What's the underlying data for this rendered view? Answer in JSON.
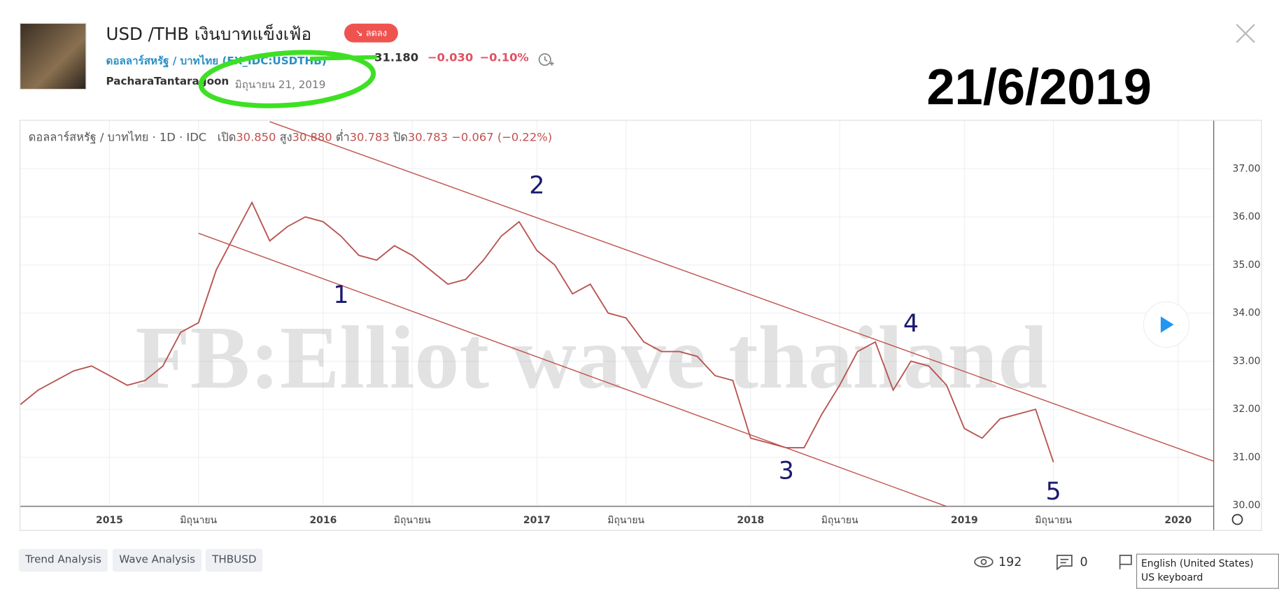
{
  "header": {
    "title": "USD /THB เงินบาทแข็งเฟ้อ",
    "badge": "↘ ลดลง",
    "symbol": "ดอลลาร์สหรัฐ / บาทไทย (FX_IDC:USDTHB)",
    "price": "31.180",
    "change": "−0.030",
    "change_percent": "−0.10%",
    "author": "PacharaTantaragoon",
    "date": "มิถุนายน 21, 2019",
    "overlay_date": "21/6/2019"
  },
  "chart_data": {
    "type": "line",
    "legend": {
      "symbol": "ดอลลาร์สหรัฐ / บาทไทย · 1D · IDC",
      "open_label": "เปิด",
      "open": "30.850",
      "high_label": "สูง",
      "high": "30.880",
      "low_label": "ต่ำ",
      "low": "30.783",
      "close_label": "ปิด",
      "close": "30.783",
      "change": "−0.067 (−0.22%)"
    },
    "watermark": "FB:Elliot wave thailand",
    "x": [
      "2014-08",
      "2014-09",
      "2014-10",
      "2014-11",
      "2014-12",
      "2015-01",
      "2015-02",
      "2015-03",
      "2015-04",
      "2015-05",
      "2015-06",
      "2015-07",
      "2015-08",
      "2015-09",
      "2015-10",
      "2015-11",
      "2015-12",
      "2016-01",
      "2016-02",
      "2016-03",
      "2016-04",
      "2016-05",
      "2016-06",
      "2016-07",
      "2016-08",
      "2016-09",
      "2016-10",
      "2016-11",
      "2016-12",
      "2017-01",
      "2017-02",
      "2017-03",
      "2017-04",
      "2017-05",
      "2017-06",
      "2017-07",
      "2017-08",
      "2017-09",
      "2017-10",
      "2017-11",
      "2017-12",
      "2018-01",
      "2018-02",
      "2018-03",
      "2018-04",
      "2018-05",
      "2018-06",
      "2018-07",
      "2018-08",
      "2018-09",
      "2018-10",
      "2018-11",
      "2018-12",
      "2019-01",
      "2019-02",
      "2019-03",
      "2019-04",
      "2019-05",
      "2019-06"
    ],
    "values": [
      32.1,
      32.4,
      32.6,
      32.8,
      32.9,
      32.7,
      32.5,
      32.6,
      32.9,
      33.6,
      33.8,
      34.9,
      35.6,
      36.3,
      35.5,
      35.8,
      36.0,
      35.9,
      35.6,
      35.2,
      35.1,
      35.4,
      35.2,
      34.9,
      34.6,
      34.7,
      35.1,
      35.6,
      35.9,
      35.3,
      35.0,
      34.4,
      34.6,
      34.0,
      33.9,
      33.4,
      33.2,
      33.2,
      33.1,
      32.7,
      32.6,
      31.4,
      31.3,
      31.2,
      31.2,
      31.9,
      32.5,
      33.2,
      33.4,
      32.4,
      33.0,
      32.9,
      32.5,
      31.6,
      31.4,
      31.8,
      31.9,
      32.0,
      30.9
    ],
    "color": "#b85450",
    "xlim": [
      "2014-08",
      "2020-03"
    ],
    "xticks": [
      {
        "value": "2015-01",
        "label": "2015"
      },
      {
        "value": "2015-06",
        "label": "มิถุนายน"
      },
      {
        "value": "2016-01",
        "label": "2016"
      },
      {
        "value": "2016-06",
        "label": "มิถุนายน"
      },
      {
        "value": "2017-01",
        "label": "2017"
      },
      {
        "value": "2017-06",
        "label": "มิถุนายน"
      },
      {
        "value": "2018-01",
        "label": "2018"
      },
      {
        "value": "2018-06",
        "label": "มิถุนายน"
      },
      {
        "value": "2019-01",
        "label": "2019"
      },
      {
        "value": "2019-06",
        "label": "มิถุนายน"
      },
      {
        "value": "2020-01",
        "label": "2020"
      }
    ],
    "ylim": [
      29.98,
      38.0
    ],
    "yticks": [
      {
        "value": 30,
        "label": "30.000"
      },
      {
        "value": 31,
        "label": "31.000"
      },
      {
        "value": 32,
        "label": "32.000"
      },
      {
        "value": 33,
        "label": "33.000"
      },
      {
        "value": 34,
        "label": "34.000"
      },
      {
        "value": 35,
        "label": "35.000"
      },
      {
        "value": 36,
        "label": "36.000"
      },
      {
        "value": 37,
        "label": "37.000"
      }
    ],
    "grid": true,
    "trend_lines": [
      {
        "x": [
          "2015-10",
          "2020-03"
        ],
        "y": [
          37.98,
          30.92
        ],
        "color": "#c0504d"
      },
      {
        "x": [
          "2015-06",
          "2018-12"
        ],
        "y": [
          35.66,
          29.98
        ],
        "color": "#c0504d"
      }
    ],
    "annotations": [
      {
        "text": "1",
        "x": "2016-02",
        "y": 34.36
      },
      {
        "text": "2",
        "x": "2017-01",
        "y": 36.63
      },
      {
        "text": "3",
        "x": "2018-03",
        "y": 30.7
      },
      {
        "text": "4",
        "x": "2018-10",
        "y": 33.76
      },
      {
        "text": "5",
        "x": "2019-06",
        "y": 30.27
      }
    ]
  },
  "tags": [
    "Trend Analysis",
    "Wave Analysis",
    "THBUSD"
  ],
  "stats": {
    "views": "192",
    "comments": "0"
  },
  "tooltip": {
    "language": "English (United States)",
    "keyboard": "US keyboard"
  }
}
